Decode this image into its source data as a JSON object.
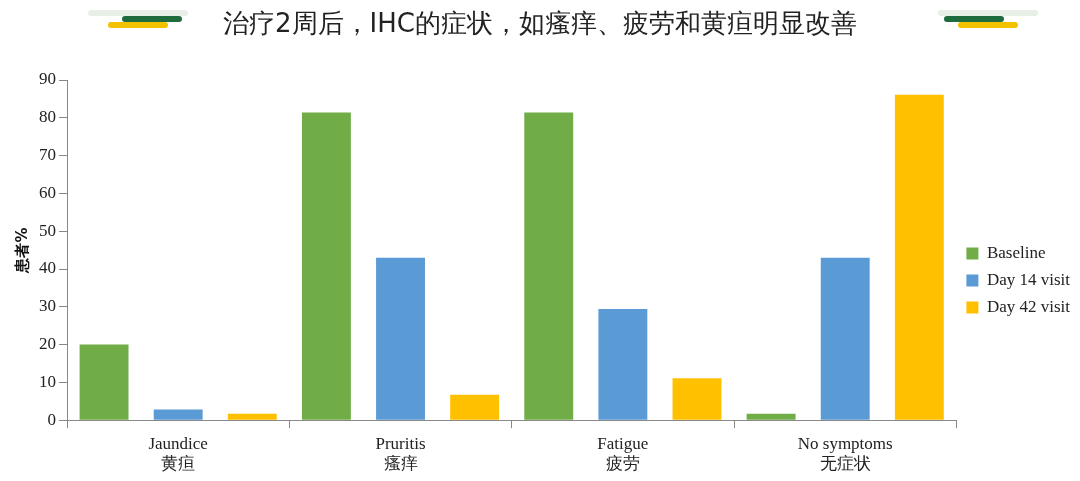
{
  "chart_data": {
    "type": "bar",
    "title": "治疗2周后，IHC的症状，如瘙痒、疲劳和黄疸明显改善",
    "ylabel": "患者%",
    "categories": [
      "Jaundice\n黄疸",
      "Pruritis\n瘙痒",
      "Fatigue\n疲劳",
      "No symptoms\n无症状"
    ],
    "series": [
      {
        "name": "Baseline",
        "color": "#70ad47",
        "values": [
          20,
          81.4,
          81.4,
          1.7
        ]
      },
      {
        "name": "Day 14 visit",
        "color": "#5b9bd5",
        "values": [
          2.8,
          43,
          29.4,
          43
        ]
      },
      {
        "name": "Day 42 visit",
        "color": "#ffc000",
        "values": [
          1.7,
          6.7,
          11.1,
          86.1
        ]
      }
    ],
    "ylim": [
      0,
      90
    ],
    "yticks": [
      0,
      10,
      20,
      30,
      40,
      50,
      60,
      70,
      80,
      90
    ],
    "grid": false,
    "legend": "right"
  }
}
